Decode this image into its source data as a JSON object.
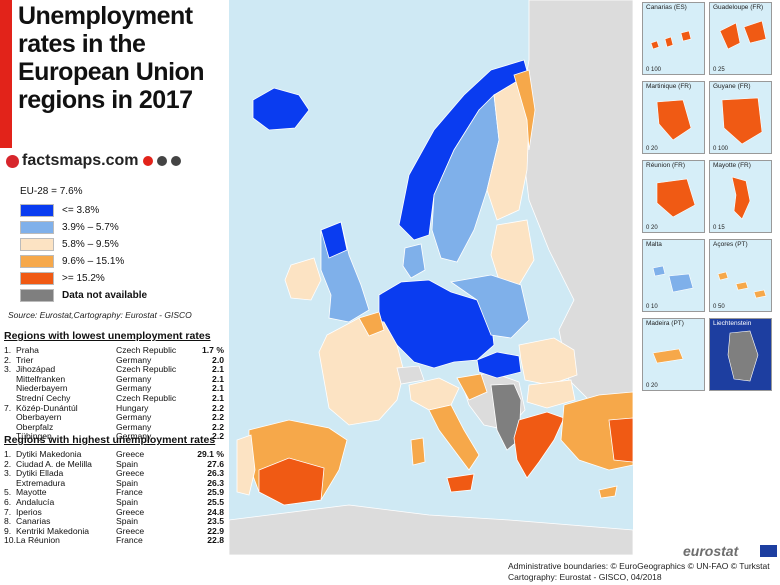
{
  "title": "Unemployment rates in the European Union regions in 2017",
  "brand": "factsmaps.com",
  "legend": {
    "eu_average": "EU-28 = 7.6%",
    "classes": [
      {
        "label": "<= 3.8%",
        "color": "#0a3cf0"
      },
      {
        "label": "3.9% – 5.7%",
        "color": "#7fb0ea"
      },
      {
        "label": "5.8% – 9.5%",
        "color": "#fce3c3"
      },
      {
        "label": "9.6% – 15.1%",
        "color": "#f6a84a"
      },
      {
        "label": ">= 15.2%",
        "color": "#f05a14"
      },
      {
        "label": "Data not available",
        "color": "#7f7f7f"
      }
    ]
  },
  "source": "Source: Eurostat,Cartography: Eurostat - GISCO",
  "lowest": {
    "heading": "Regions with lowest unemployment rates",
    "rows": [
      {
        "rank": "1.",
        "region": "Praha",
        "country": "Czech Republic",
        "value": "1.7 %"
      },
      {
        "rank": "2.",
        "region": "Trier",
        "country": "Germany",
        "value": "2.0"
      },
      {
        "rank": "3.",
        "region": "Jihozápad",
        "country": "Czech Republic",
        "value": "2.1"
      },
      {
        "rank": "",
        "region": "Mittelfranken",
        "country": "Germany",
        "value": "2.1"
      },
      {
        "rank": "",
        "region": "Niederbayern",
        "country": "Germany",
        "value": "2.1"
      },
      {
        "rank": "",
        "region": "Strední Cechy",
        "country": "Czech Republic",
        "value": "2.1"
      },
      {
        "rank": "7.",
        "region": "Közép-Dunántúl",
        "country": "Hungary",
        "value": "2.2"
      },
      {
        "rank": "",
        "region": "Oberbayern",
        "country": "Germany",
        "value": "2.2"
      },
      {
        "rank": "",
        "region": "Oberpfalz",
        "country": "Germany",
        "value": "2.2"
      },
      {
        "rank": "",
        "region": "Tübingen",
        "country": "Germany",
        "value": "2.2"
      }
    ]
  },
  "highest": {
    "heading": "Regions with highest unemployment rates",
    "rows": [
      {
        "rank": "1.",
        "region": "Dytiki Makedonia",
        "country": "Greece",
        "value": "29.1 %"
      },
      {
        "rank": "2.",
        "region": "Ciudad A. de Melilla",
        "country": "Spain",
        "value": "27.6"
      },
      {
        "rank": "3.",
        "region": "Dytiki Ellada",
        "country": "Greece",
        "value": "26.3"
      },
      {
        "rank": "",
        "region": "Extremadura",
        "country": "Spain",
        "value": "26.3"
      },
      {
        "rank": "5.",
        "region": "Mayotte",
        "country": "France",
        "value": "25.9"
      },
      {
        "rank": "6.",
        "region": "Andalucía",
        "country": "Spain",
        "value": "25.5"
      },
      {
        "rank": "7.",
        "region": "Iperios",
        "country": "Greece",
        "value": "24.8"
      },
      {
        "rank": "8.",
        "region": "Canarias",
        "country": "Spain",
        "value": "23.5"
      },
      {
        "rank": "9.",
        "region": "Kentriki Makedonia",
        "country": "Greece",
        "value": "22.9"
      },
      {
        "rank": "10.",
        "region": "La Réunion",
        "country": "France",
        "value": "22.8"
      }
    ]
  },
  "insets": [
    {
      "label": "Canarias (ES)",
      "scale": "0  100"
    },
    {
      "label": "Guadeloupe (FR)",
      "scale": "0  25"
    },
    {
      "label": "Martinique (FR)",
      "scale": "0  20"
    },
    {
      "label": "Guyane (FR)",
      "scale": "0  100"
    },
    {
      "label": "Réunion (FR)",
      "scale": "0  20"
    },
    {
      "label": "Mayotte (FR)",
      "scale": "0  15"
    },
    {
      "label": "Malta",
      "scale": "0  10"
    },
    {
      "label": "Açores (PT)",
      "scale": "0  50"
    },
    {
      "label": "Madeira (PT)",
      "scale": "0  20"
    },
    {
      "label": "Liechtenstein",
      "scale": ""
    }
  ],
  "credits": {
    "line1": "Administrative boundaries: © EuroGeographics © UN-FAO © Turkstat",
    "line2": "Cartography: Eurostat - GISCO, 04/2018"
  },
  "eurostat_logo": "eurostat"
}
